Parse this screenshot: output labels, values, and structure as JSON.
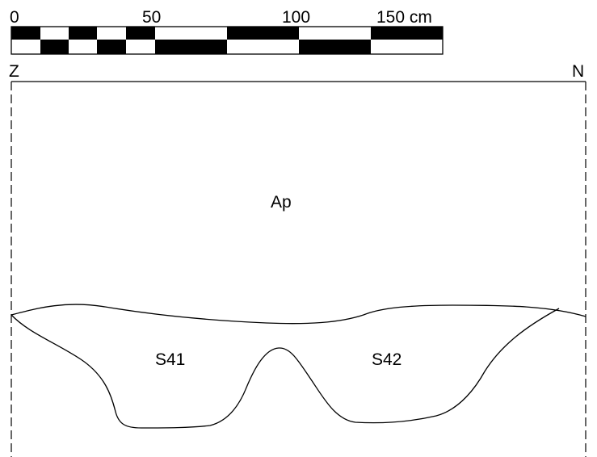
{
  "scale_bar": {
    "labels": {
      "zero": "0",
      "fifty": "50",
      "hundred": "100",
      "one_fifty": "150 cm"
    }
  },
  "orientation": {
    "left": "Z",
    "right": "N"
  },
  "layers": {
    "topsoil": "Ap",
    "feature_1": "S41",
    "feature_2": "S42"
  },
  "colors": {
    "ink": "#000000",
    "paper": "#ffffff"
  }
}
